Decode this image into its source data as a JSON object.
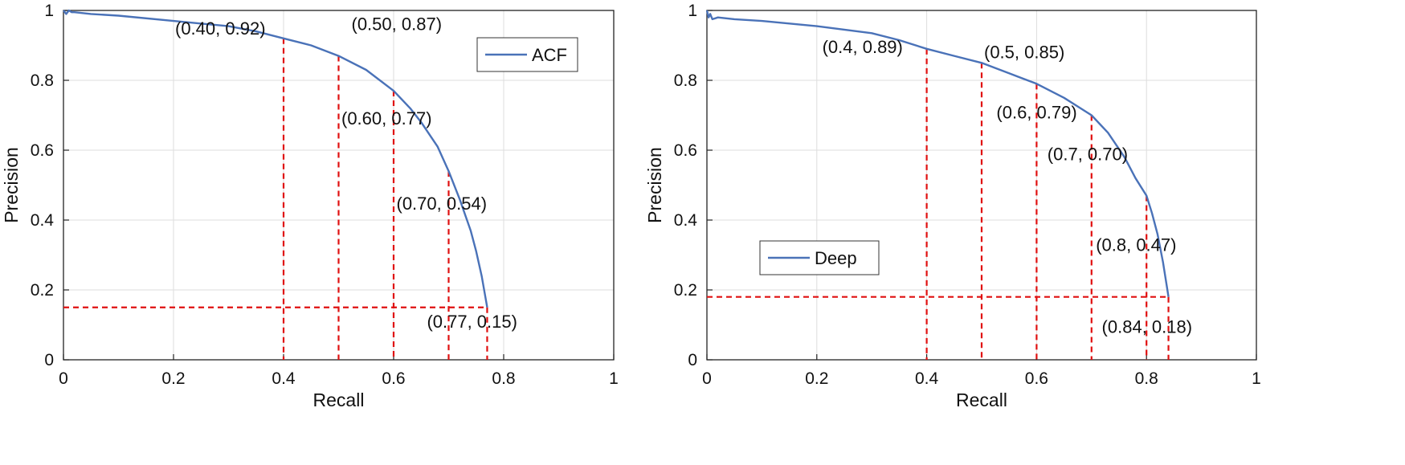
{
  "colors": {
    "curve": "#4a72b8",
    "ref": "#e01010",
    "grid": "#dddddd",
    "axis": "#222222"
  },
  "chart_data": [
    {
      "type": "line",
      "xlabel": "Recall",
      "ylabel": "Precision",
      "xlim": [
        0,
        1
      ],
      "ylim": [
        0,
        1
      ],
      "xticks": [
        "0",
        "0.2",
        "0.4",
        "0.6",
        "0.8",
        "1"
      ],
      "yticks": [
        "0",
        "0.2",
        "0.4",
        "0.6",
        "0.8",
        "1"
      ],
      "grid": true,
      "legend_position": "top-right",
      "series": [
        {
          "name": "ACF",
          "x": [
            0,
            0.005,
            0.01,
            0.015,
            0.02,
            0.05,
            0.1,
            0.2,
            0.3,
            0.35,
            0.4,
            0.45,
            0.5,
            0.55,
            0.6,
            0.63,
            0.65,
            0.68,
            0.7,
            0.72,
            0.74,
            0.75,
            0.76,
            0.77
          ],
          "y": [
            1.0,
            0.99,
            1.0,
            0.995,
            0.995,
            0.99,
            0.985,
            0.97,
            0.955,
            0.94,
            0.92,
            0.9,
            0.87,
            0.83,
            0.77,
            0.72,
            0.68,
            0.61,
            0.54,
            0.46,
            0.37,
            0.31,
            0.24,
            0.15
          ]
        }
      ],
      "guides": [
        {
          "x": 0.4,
          "y": 0.92,
          "label": "(0.40, 0.92)",
          "anchor": "left"
        },
        {
          "x": 0.5,
          "y": 0.87,
          "label": "(0.50, 0.87)",
          "anchor": "above"
        },
        {
          "x": 0.6,
          "y": 0.77,
          "label": "(0.60, 0.77)",
          "anchor": "right"
        },
        {
          "x": 0.7,
          "y": 0.54,
          "label": "(0.70, 0.54)",
          "anchor": "right"
        },
        {
          "x": 0.77,
          "y": 0.15,
          "label": "(0.77, 0.15)",
          "anchor": "right",
          "horizontal": true
        }
      ]
    },
    {
      "type": "line",
      "xlabel": "Recall",
      "ylabel": "Precision",
      "xlim": [
        0,
        1
      ],
      "ylim": [
        0,
        1
      ],
      "xticks": [
        "0",
        "0.2",
        "0.4",
        "0.6",
        "0.8",
        "1"
      ],
      "yticks": [
        "0",
        "0.2",
        "0.4",
        "0.6",
        "0.8",
        "1"
      ],
      "grid": true,
      "legend_position": "lower-left",
      "series": [
        {
          "name": "Deep",
          "x": [
            0,
            0.003,
            0.006,
            0.01,
            0.02,
            0.05,
            0.1,
            0.2,
            0.3,
            0.35,
            0.4,
            0.45,
            0.5,
            0.55,
            0.6,
            0.65,
            0.7,
            0.73,
            0.76,
            0.78,
            0.8,
            0.81,
            0.82,
            0.83,
            0.84
          ],
          "y": [
            1.0,
            0.98,
            0.99,
            0.975,
            0.98,
            0.975,
            0.97,
            0.955,
            0.935,
            0.915,
            0.89,
            0.87,
            0.85,
            0.82,
            0.79,
            0.75,
            0.7,
            0.65,
            0.58,
            0.52,
            0.47,
            0.42,
            0.36,
            0.28,
            0.18
          ]
        }
      ],
      "guides": [
        {
          "x": 0.4,
          "y": 0.89,
          "label": "(0.4, 0.89)",
          "anchor": "left"
        },
        {
          "x": 0.5,
          "y": 0.85,
          "label": "(0.5, 0.85)",
          "anchor": "above"
        },
        {
          "x": 0.6,
          "y": 0.79,
          "label": "(0.6, 0.79)",
          "anchor": "left"
        },
        {
          "x": 0.7,
          "y": 0.7,
          "label": "(0.7, 0.70)",
          "anchor": "left"
        },
        {
          "x": 0.8,
          "y": 0.47,
          "label": "(0.8, 0.47)",
          "anchor": "right"
        },
        {
          "x": 0.84,
          "y": 0.18,
          "label": "(0.84, 0.18)",
          "anchor": "below",
          "horizontal": true
        }
      ]
    }
  ]
}
